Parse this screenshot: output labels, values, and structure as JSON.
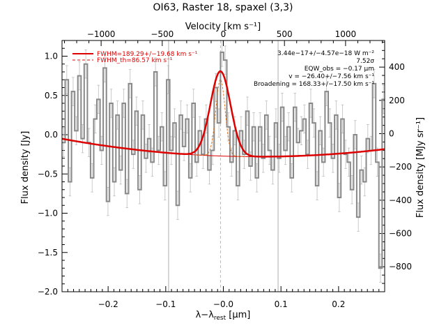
{
  "chart_data": {
    "type": "line",
    "title": "OI63, Raster 18, spaxel (3,3)",
    "xlabel": "λ−λ_rest [μm]",
    "xlabel_main": "λ−λ",
    "xlabel_sub": "rest",
    "xlabel_unit": " [μm]",
    "ylabel": "Flux density [Jy]",
    "top_xlabel": "Velocity [km s⁻¹]",
    "right_ylabel": "Flux density [MJy sr⁻¹]",
    "xlim": [
      -0.28,
      0.28
    ],
    "ylim": [
      -2.0,
      1.2
    ],
    "top_xlim": [
      -1320,
      1320
    ],
    "right_ylim": [
      -950,
      560
    ],
    "x_ticks": [
      -0.2,
      -0.1,
      0.0,
      0.1,
      0.2
    ],
    "x_tick_labels": [
      "−0.2",
      "−0.1",
      "−0.0",
      "0.1",
      "0.2"
    ],
    "y_ticks": [
      1.0,
      0.5,
      0.0,
      -0.5,
      -1.0,
      -1.5,
      -2.0
    ],
    "y_tick_labels": [
      "1.0",
      "0.5",
      "0.0",
      "−0.5",
      "−1.0",
      "−1.5",
      "−2.0"
    ],
    "top_ticks": [
      -1000,
      -500,
      0,
      500,
      1000
    ],
    "top_tick_labels": [
      "−1000",
      "−500",
      "0",
      "500",
      "1000"
    ],
    "right_ticks": [
      400,
      200,
      0,
      -200,
      -400,
      -600,
      -800
    ],
    "right_tick_labels": [
      "400",
      "200",
      "0",
      "−200",
      "−400",
      "−600",
      "−800"
    ],
    "vertical_lines": [
      -0.095,
      0.095
    ],
    "rest_line": -0.005,
    "legend": {
      "position": "top-left",
      "entries": [
        {
          "label": "FWHM=189.29+/−19.68 km s⁻¹",
          "color": "#dd0000",
          "style": "solid"
        },
        {
          "label": "FWHM_th=86.57 km s⁻¹",
          "color": "#dd0000",
          "style": "dashed"
        }
      ]
    },
    "annotations": [
      "3.44e−17+/−4.57e−18 W m⁻²",
      "7.52σ",
      "EQW_obs = −0.17 μm",
      "v = −26.40+/−7.56 km s⁻¹",
      "Broadening = 168.33+/−17.50 km s⁻¹"
    ],
    "colors": {
      "data": "#888888",
      "fit": "#dd0000",
      "thermal": "#e07820",
      "axis": "#000000"
    },
    "series": [
      {
        "kind": "histogram",
        "x": [
          -0.28,
          -0.2745,
          -0.269,
          -0.2635,
          -0.258,
          -0.2525,
          -0.247,
          -0.2415,
          -0.236,
          -0.2305,
          -0.225,
          -0.2195,
          -0.214,
          -0.2085,
          -0.203,
          -0.1975,
          -0.192,
          -0.1865,
          -0.181,
          -0.1755,
          -0.17,
          -0.1645,
          -0.159,
          -0.1535,
          -0.148,
          -0.1425,
          -0.137,
          -0.1315,
          -0.126,
          -0.1205,
          -0.115,
          -0.1095,
          -0.104,
          -0.0985,
          -0.093,
          -0.0875,
          -0.082,
          -0.0765,
          -0.071,
          -0.0655,
          -0.06,
          -0.0545,
          -0.049,
          -0.0435,
          -0.038,
          -0.0325,
          -0.027,
          -0.0215,
          -0.016,
          -0.0105,
          -0.005,
          0.0005,
          0.006,
          0.0115,
          0.017,
          0.0225,
          0.028,
          0.0335,
          0.039,
          0.0445,
          0.05,
          0.0555,
          0.061,
          0.0665,
          0.072,
          0.0775,
          0.083,
          0.0885,
          0.094,
          0.0995,
          0.105,
          0.1105,
          0.116,
          0.1215,
          0.127,
          0.1325,
          0.138,
          0.1435,
          0.149,
          0.1545,
          0.16,
          0.1655,
          0.171,
          0.1765,
          0.182,
          0.1875,
          0.193,
          0.1985,
          0.204,
          0.2095,
          0.215,
          0.2205,
          0.226,
          0.2315,
          0.237,
          0.2425,
          0.248,
          0.2535,
          0.259,
          0.2645,
          0.27,
          0.2755
        ],
        "y": [
          -0.1,
          0.7,
          -0.6,
          0.55,
          0.05,
          0.75,
          -0.05,
          0.9,
          -0.1,
          -0.55,
          0.2,
          0.45,
          -0.2,
          0.85,
          -0.85,
          0.4,
          -0.6,
          0.25,
          -0.45,
          0.4,
          -0.75,
          0.65,
          -0.25,
          0.3,
          -0.7,
          0.25,
          -0.3,
          -0.05,
          -0.35,
          0.8,
          -0.2,
          0.1,
          -0.65,
          0.7,
          -0.2,
          0.15,
          -0.9,
          0.25,
          -0.15,
          0.2,
          -0.55,
          0.4,
          -0.35,
          0.05,
          -0.25,
          0.2,
          -0.45,
          -0.2,
          0.6,
          0.15,
          1.05,
          0.95,
          0.1,
          -0.35,
          0.05,
          -0.65,
          0.05,
          -0.25,
          0.3,
          -0.4,
          0.1,
          -0.55,
          0.1,
          -0.3,
          0.25,
          -0.2,
          -0.45,
          0.15,
          -0.3,
          0.35,
          -0.2,
          0.1,
          -0.55,
          0.35,
          -0.1,
          0.05,
          0.2,
          -0.25,
          0.4,
          0.15,
          -0.65,
          0.05,
          -0.35,
          0.55,
          0.15,
          -0.3,
          0.25,
          -0.8,
          0.2,
          -0.25,
          -0.35,
          -0.7,
          0.0,
          -1.05,
          -0.45,
          -0.6,
          -0.05,
          -0.2,
          0.65,
          -0.35,
          -1.7,
          0.45
        ],
        "err": 0.18
      },
      {
        "kind": "fit",
        "baseline_a": -0.28,
        "baseline_b": 0.52,
        "baseline_c": 3.8,
        "gauss_amp": 1.08,
        "gauss_center": -0.005,
        "gauss_sigma": 0.0175,
        "thermal_amp": 0.98,
        "thermal_sigma": 0.008
      }
    ]
  }
}
